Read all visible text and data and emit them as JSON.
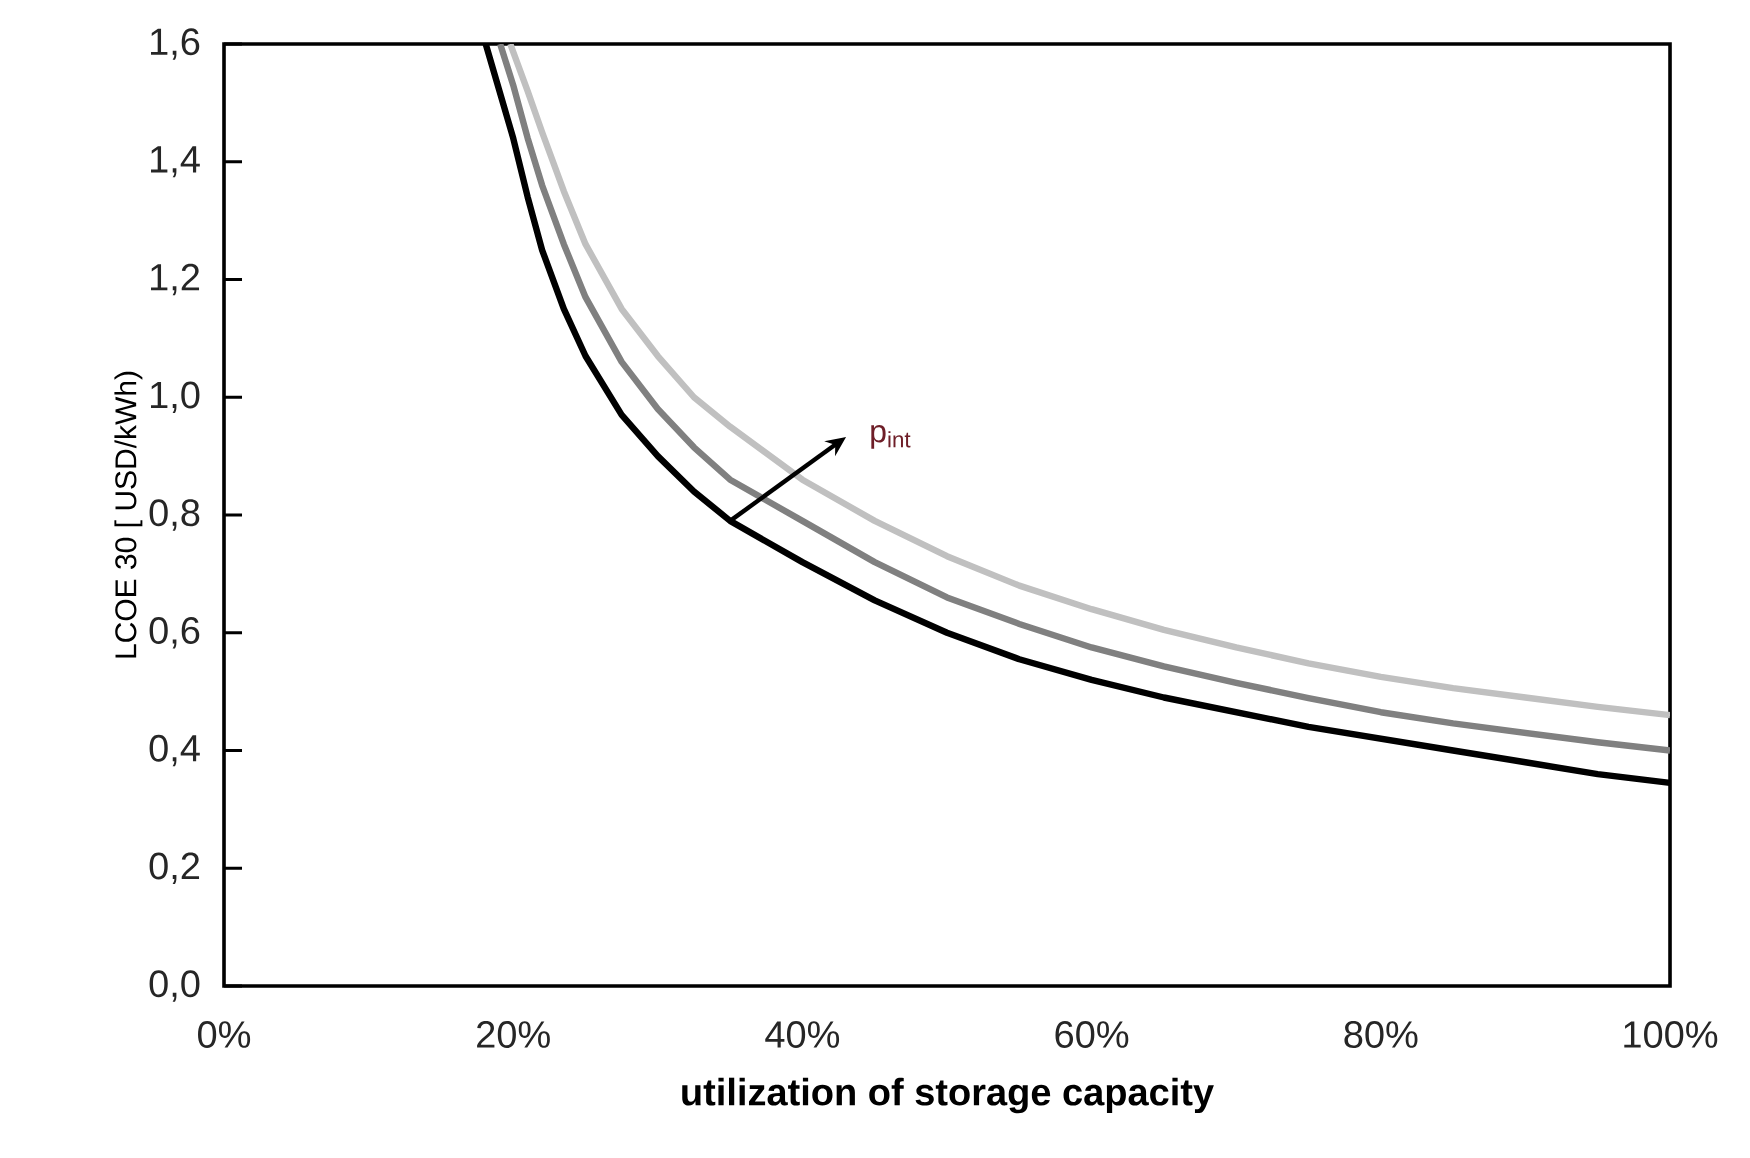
{
  "chart_data": {
    "type": "line",
    "xlabel": "utilization of storage capacity",
    "ylabel": "LCOE 30 [ USD/kWh)",
    "xlim": [
      0,
      100
    ],
    "ylim": [
      0,
      1.6
    ],
    "xticks": [
      {
        "value": 0,
        "label": "0%"
      },
      {
        "value": 20,
        "label": "20%"
      },
      {
        "value": 40,
        "label": "40%"
      },
      {
        "value": 60,
        "label": "60%"
      },
      {
        "value": 80,
        "label": "80%"
      },
      {
        "value": 100,
        "label": "100%"
      }
    ],
    "yticks": [
      {
        "value": 0,
        "label": "0,0"
      },
      {
        "value": 0.2,
        "label": "0,2"
      },
      {
        "value": 0.4,
        "label": "0,4"
      },
      {
        "value": 0.6,
        "label": "0,6"
      },
      {
        "value": 0.8,
        "label": "0,8"
      },
      {
        "value": 1.0,
        "label": "1,0"
      },
      {
        "value": 1.2,
        "label": "1,2"
      },
      {
        "value": 1.4,
        "label": "1,4"
      },
      {
        "value": 1.6,
        "label": "1,6"
      }
    ],
    "grid": false,
    "marker": "none",
    "line_style": "solid",
    "annotations": [
      {
        "text": "p$_{int}$",
        "x": 35,
        "y": 0.79
      }
    ],
    "series": [
      {
        "color": "#000000",
        "x": [
          18.1,
          20,
          21,
          22,
          23.5,
          25,
          27.5,
          30,
          32.5,
          35,
          40,
          45,
          50,
          55,
          60,
          65,
          70,
          75,
          80,
          85,
          90,
          95,
          100
        ],
        "values": [
          1.6,
          1.44,
          1.34,
          1.25,
          1.15,
          1.07,
          0.97,
          0.9,
          0.84,
          0.79,
          0.72,
          0.655,
          0.6,
          0.555,
          0.52,
          0.49,
          0.465,
          0.44,
          0.42,
          0.4,
          0.38,
          0.36,
          0.345
        ]
      },
      {
        "color": "#808080",
        "x": [
          19.1,
          20,
          21,
          22,
          23.5,
          25,
          27.5,
          30,
          32.5,
          35,
          40,
          45,
          50,
          55,
          60,
          65,
          70,
          75,
          80,
          85,
          90,
          95,
          100
        ],
        "values": [
          1.6,
          1.53,
          1.44,
          1.36,
          1.26,
          1.17,
          1.06,
          0.98,
          0.915,
          0.86,
          0.79,
          0.72,
          0.66,
          0.615,
          0.575,
          0.543,
          0.515,
          0.489,
          0.465,
          0.446,
          0.43,
          0.414,
          0.4
        ]
      },
      {
        "color": "#c0c0c0",
        "x": [
          19.8,
          21,
          22,
          23.5,
          25,
          27.5,
          30,
          32.5,
          35,
          40,
          45,
          50,
          55,
          60,
          65,
          70,
          75,
          80,
          85,
          90,
          95,
          100
        ],
        "values": [
          1.6,
          1.52,
          1.45,
          1.35,
          1.26,
          1.15,
          1.07,
          1.0,
          0.95,
          0.86,
          0.79,
          0.73,
          0.68,
          0.64,
          0.605,
          0.575,
          0.548,
          0.525,
          0.506,
          0.49,
          0.474,
          0.46
        ]
      }
    ]
  }
}
